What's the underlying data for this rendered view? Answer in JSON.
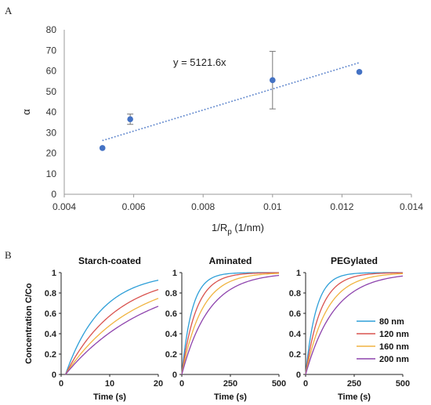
{
  "chart_data": [
    {
      "panel": "A",
      "type": "scatter",
      "xlabel_main": "1/R",
      "xlabel_sub": "p",
      "xlabel_unit": " (1/nm)",
      "ylabel": "α",
      "xlim": [
        0.004,
        0.014
      ],
      "ylim": [
        0,
        80
      ],
      "xticks": [
        "0.004",
        "0.006",
        "0.008",
        "0.01",
        "0.012",
        "0.014"
      ],
      "xtick_values": [
        0.004,
        0.006,
        0.008,
        0.01,
        0.012,
        0.014
      ],
      "yticks": [
        "0",
        "10",
        "20",
        "30",
        "40",
        "50",
        "60",
        "70",
        "80"
      ],
      "ytick_values": [
        0,
        10,
        20,
        30,
        40,
        50,
        60,
        70,
        80
      ],
      "points": [
        {
          "x": 0.0051,
          "y": 22.5,
          "err": 0
        },
        {
          "x": 0.0059,
          "y": 36.5,
          "err": 2.5
        },
        {
          "x": 0.01,
          "y": 55.5,
          "err": 14
        },
        {
          "x": 0.0125,
          "y": 59.5,
          "err": 0
        }
      ],
      "trendline": {
        "equation": "y = 5121.6x",
        "slope": 5121.6,
        "x_range": [
          0.0051,
          0.0125
        ]
      },
      "marker_color": "#4472c4",
      "trend_color": "#4472c4"
    },
    {
      "panel": "B",
      "type": "line",
      "ylabel": "Concentration C/Co",
      "xlabel": "Time (s)",
      "series_names": [
        "80 nm",
        "120 nm",
        "160 nm",
        "200 nm"
      ],
      "series_colors": [
        "#2e9fd8",
        "#d9534f",
        "#f0b440",
        "#8e44ad"
      ],
      "yticks": [
        "0",
        "0.2",
        "0.4",
        "0.6",
        "0.8",
        "1"
      ],
      "ytick_values": [
        0,
        0.2,
        0.4,
        0.6,
        0.8,
        1
      ],
      "subplots": [
        {
          "title": "Starch-coated",
          "xlim": [
            0,
            20
          ],
          "xticks": [
            "0",
            "10",
            "20"
          ],
          "xtick_values": [
            0,
            10,
            20
          ],
          "t0": 0.9,
          "rates": [
            0.136,
            0.094,
            0.072,
            0.058
          ]
        },
        {
          "title": "Aminated",
          "xlim": [
            0,
            500
          ],
          "xticks": [
            "0",
            "250",
            "500"
          ],
          "xtick_values": [
            0,
            250,
            500
          ],
          "t0": 0,
          "rates": [
            0.019,
            0.0135,
            0.0098,
            0.0072
          ]
        },
        {
          "title": "PEGylated",
          "xlim": [
            0,
            500
          ],
          "xticks": [
            "0",
            "250",
            "500"
          ],
          "xtick_values": [
            0,
            250,
            500
          ],
          "t0": 0,
          "rates": [
            0.0185,
            0.0128,
            0.0092,
            0.0068
          ]
        }
      ]
    }
  ],
  "labels": {
    "panel_a": "A",
    "panel_b": "B"
  }
}
